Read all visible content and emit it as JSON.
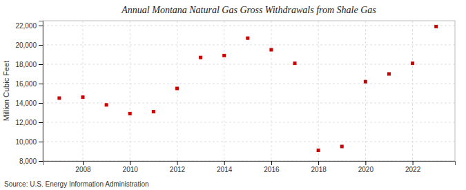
{
  "chart_data": {
    "type": "scatter",
    "title": "Annual Montana Natural Gas Gross Withdrawals from Shale Gas",
    "ylabel": "Million Cubic Feet",
    "source": "Source: U.S. Energy Information Administration",
    "x": [
      2007,
      2008,
      2009,
      2010,
      2011,
      2012,
      2013,
      2014,
      2015,
      2016,
      2017,
      2018,
      2019,
      2020,
      2021,
      2022,
      2023
    ],
    "values": [
      14500,
      14600,
      13800,
      12900,
      13100,
      15500,
      18700,
      18900,
      20700,
      19500,
      18100,
      9100,
      9500,
      16200,
      17000,
      18100,
      21900
    ],
    "color": "#cc0000",
    "marker": "square",
    "xlim": [
      2006.3,
      2023.8
    ],
    "xticks": [
      2008,
      2010,
      2012,
      2014,
      2016,
      2018,
      2020,
      2022
    ],
    "ylim": [
      8000,
      22500
    ],
    "yticks": [
      {
        "value": 8000,
        "label": "8,000"
      },
      {
        "value": 10000,
        "label": "10,000"
      },
      {
        "value": 12000,
        "label": "12,000"
      },
      {
        "value": 14000,
        "label": "14,000"
      },
      {
        "value": 16000,
        "label": "16,000"
      },
      {
        "value": 18000,
        "label": "18,000"
      },
      {
        "value": 20000,
        "label": "20,000"
      },
      {
        "value": 22000,
        "label": "22,000"
      }
    ],
    "grid": true
  }
}
